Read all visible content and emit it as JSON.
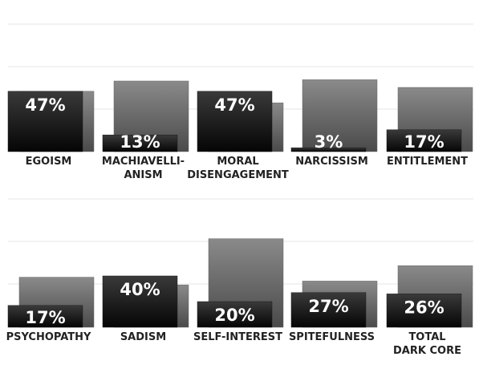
{
  "chart_data": {
    "type": "bar",
    "title": "",
    "xlabel": "",
    "ylabel": "",
    "grid": true,
    "legend": "none",
    "colors": {
      "reference_bar_top": "#8a8a8a",
      "reference_bar_bottom": "#4a4a4a",
      "value_bar_top": "#3a3a3a",
      "value_bar_bottom": "#050505",
      "grid": "#e6e6e6",
      "label_text": "#222222",
      "value_text": "#ffffff"
    },
    "rows": [
      {
        "categories": [
          [
            "EGOISM"
          ],
          [
            "MACHIAVELLI-",
            "ANISM"
          ],
          [
            "MORAL",
            "DISENGAGEMENT"
          ],
          [
            "NARCISSISM"
          ],
          [
            "ENTITLEMENT"
          ]
        ],
        "values": [
          47,
          13,
          47,
          3,
          17
        ],
        "value_labels": [
          "47%",
          "13%",
          "47%",
          "3%",
          "17%"
        ],
        "reference_values": [
          47,
          55,
          38,
          56,
          50
        ],
        "ylim": [
          0,
          100
        ]
      },
      {
        "categories": [
          [
            "PSYCHOPATHY"
          ],
          [
            "SADISM"
          ],
          [
            "SELF-INTEREST"
          ],
          [
            "SPITEFULNESS"
          ],
          [
            "TOTAL",
            "DARK CORE"
          ]
        ],
        "values": [
          17,
          40,
          20,
          27,
          26
        ],
        "value_labels": [
          "17%",
          "40%",
          "20%",
          "27%",
          "26%"
        ],
        "reference_values": [
          39,
          33,
          69,
          36,
          48
        ],
        "ylim": [
          0,
          100
        ]
      }
    ]
  }
}
